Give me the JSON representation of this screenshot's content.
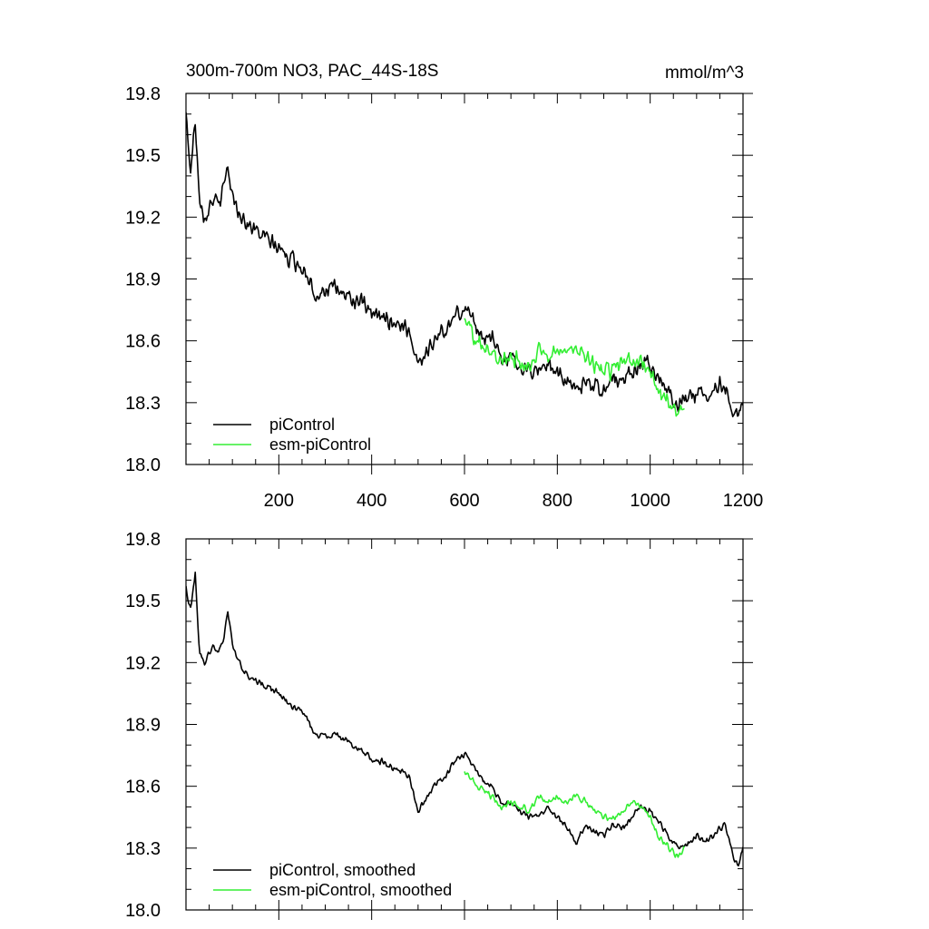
{
  "chart_data": [
    {
      "type": "line",
      "title": "300m-700m NO3, PAC_44S-18S",
      "units": "mmol/m^3",
      "xlim": [
        0,
        1200
      ],
      "ylim": [
        18.0,
        19.8
      ],
      "x_ticks": [
        200,
        400,
        600,
        800,
        1000,
        1200
      ],
      "x_tick_labels": [
        "200",
        "400",
        "600",
        "800",
        "1000",
        "1200"
      ],
      "y_ticks": [
        18.0,
        18.3,
        18.6,
        18.9,
        19.2,
        19.5,
        19.8
      ],
      "y_tick_labels": [
        "18.0",
        "18.3",
        "18.6",
        "18.9",
        "19.2",
        "19.5",
        "19.8"
      ],
      "grid": false,
      "legend": "bottom-left",
      "series": [
        {
          "name": "piControl",
          "color": "#000000",
          "noise": 0.05,
          "x": [
            0,
            5,
            10,
            15,
            20,
            25,
            30,
            40,
            50,
            60,
            70,
            80,
            90,
            100,
            110,
            120,
            140,
            160,
            180,
            200,
            220,
            240,
            260,
            280,
            300,
            320,
            340,
            360,
            380,
            400,
            420,
            440,
            460,
            480,
            500,
            520,
            540,
            560,
            580,
            600,
            620,
            640,
            660,
            680,
            700,
            720,
            740,
            760,
            780,
            800,
            820,
            840,
            860,
            880,
            900,
            920,
            940,
            960,
            980,
            1000,
            1020,
            1040,
            1060,
            1080,
            1100,
            1120,
            1140,
            1160,
            1180,
            1190,
            1200
          ],
          "y": [
            19.7,
            19.56,
            19.42,
            19.55,
            19.68,
            19.45,
            19.3,
            19.2,
            19.25,
            19.3,
            19.25,
            19.32,
            19.45,
            19.3,
            19.25,
            19.2,
            19.15,
            19.12,
            19.08,
            19.05,
            19.0,
            18.98,
            18.93,
            18.82,
            18.85,
            18.85,
            18.83,
            18.8,
            18.78,
            18.72,
            18.72,
            18.7,
            18.68,
            18.65,
            18.5,
            18.55,
            18.62,
            18.65,
            18.72,
            18.76,
            18.7,
            18.62,
            18.6,
            18.52,
            18.52,
            18.48,
            18.45,
            18.46,
            18.5,
            18.45,
            18.4,
            18.35,
            18.42,
            18.38,
            18.36,
            18.42,
            18.4,
            18.45,
            18.5,
            18.48,
            18.42,
            18.35,
            18.3,
            18.32,
            18.35,
            18.33,
            18.37,
            18.4,
            18.25,
            18.22,
            18.3
          ]
        },
        {
          "name": "esm-piControl",
          "color": "#33ee33",
          "noise": 0.05,
          "x": [
            600,
            620,
            640,
            660,
            680,
            700,
            720,
            740,
            760,
            780,
            800,
            820,
            840,
            860,
            880,
            900,
            920,
            940,
            960,
            980,
            1000,
            1020,
            1040,
            1060,
            1075
          ],
          "y": [
            18.7,
            18.62,
            18.58,
            18.55,
            18.5,
            18.52,
            18.5,
            18.48,
            18.55,
            18.52,
            18.55,
            18.52,
            18.55,
            18.53,
            18.48,
            18.45,
            18.45,
            18.48,
            18.5,
            18.5,
            18.45,
            18.35,
            18.3,
            18.25,
            18.28
          ]
        }
      ]
    },
    {
      "type": "line",
      "xlim": [
        0,
        1200
      ],
      "ylim": [
        18.0,
        19.8
      ],
      "y_ticks": [
        18.0,
        18.3,
        18.6,
        18.9,
        19.2,
        19.5,
        19.8
      ],
      "y_tick_labels": [
        "18.0",
        "18.3",
        "18.6",
        "18.9",
        "19.2",
        "19.5",
        "19.8"
      ],
      "grid": false,
      "legend": "bottom-left",
      "series": [
        {
          "name": "piControl, smoothed",
          "color": "#000000",
          "noise": 0.02,
          "x": [
            0,
            5,
            10,
            15,
            20,
            25,
            30,
            40,
            50,
            60,
            70,
            80,
            90,
            100,
            110,
            120,
            140,
            160,
            180,
            200,
            220,
            240,
            260,
            280,
            300,
            320,
            340,
            360,
            380,
            400,
            420,
            440,
            460,
            480,
            500,
            520,
            540,
            560,
            580,
            600,
            620,
            640,
            660,
            680,
            700,
            720,
            740,
            760,
            780,
            800,
            820,
            840,
            860,
            880,
            900,
            920,
            940,
            960,
            980,
            1000,
            1020,
            1040,
            1060,
            1080,
            1100,
            1120,
            1140,
            1160,
            1180,
            1190,
            1200
          ],
          "y": [
            19.58,
            19.5,
            19.45,
            19.55,
            19.65,
            19.4,
            19.25,
            19.2,
            19.25,
            19.28,
            19.25,
            19.3,
            19.45,
            19.28,
            19.22,
            19.18,
            19.12,
            19.1,
            19.08,
            19.05,
            19.0,
            18.98,
            18.93,
            18.84,
            18.85,
            18.85,
            18.83,
            18.8,
            18.78,
            18.72,
            18.72,
            18.7,
            18.68,
            18.65,
            18.48,
            18.55,
            18.62,
            18.65,
            18.72,
            18.75,
            18.7,
            18.62,
            18.6,
            18.52,
            18.52,
            18.48,
            18.45,
            18.46,
            18.5,
            18.45,
            18.4,
            18.32,
            18.42,
            18.38,
            18.36,
            18.42,
            18.4,
            18.45,
            18.5,
            18.48,
            18.42,
            18.35,
            18.3,
            18.32,
            18.36,
            18.33,
            18.37,
            18.42,
            18.25,
            18.22,
            18.3
          ]
        },
        {
          "name": "esm-piControl, smoothed",
          "color": "#33ee33",
          "noise": 0.02,
          "x": [
            600,
            620,
            640,
            660,
            680,
            700,
            720,
            740,
            760,
            780,
            800,
            820,
            840,
            860,
            880,
            900,
            920,
            940,
            960,
            980,
            1000,
            1020,
            1040,
            1060,
            1075
          ],
          "y": [
            18.68,
            18.62,
            18.58,
            18.55,
            18.5,
            18.52,
            18.5,
            18.48,
            18.55,
            18.52,
            18.55,
            18.52,
            18.55,
            18.53,
            18.48,
            18.45,
            18.45,
            18.48,
            18.52,
            18.5,
            18.45,
            18.35,
            18.3,
            18.26,
            18.3
          ]
        }
      ]
    }
  ]
}
